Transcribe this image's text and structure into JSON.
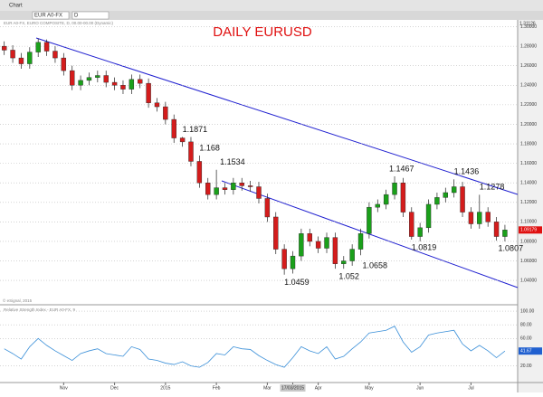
{
  "toolbar": {
    "window": "Chart",
    "symbol": "EUR A0-FX",
    "interval": "D",
    "study": "EUR A0-FX, EURO COMPOSITE, D, 00.00-00.00 (Dynamic)",
    "copyright": "© eSignal, 2015",
    "top_price": "1.31126"
  },
  "chart_data": [
    {
      "type": "candlestick",
      "title": "DAILY EURUSD",
      "up_color": "#1aa01a",
      "down_color": "#d41c1c",
      "last_label": "1.09179",
      "grid": true,
      "open": [
        1.28,
        1.276,
        1.268,
        1.262,
        1.274,
        1.284,
        1.275,
        1.268,
        1.255,
        1.24,
        1.245,
        1.248,
        1.25,
        1.243,
        1.24,
        1.236,
        1.246,
        1.242,
        1.222,
        1.218,
        1.205,
        1.186,
        1.182,
        1.162,
        1.14,
        1.128,
        1.135,
        1.133,
        1.14,
        1.137,
        1.136,
        1.124,
        1.105,
        1.072,
        1.052,
        1.065,
        1.088,
        1.08,
        1.073,
        1.084,
        1.057,
        1.06,
        1.072,
        1.088,
        1.115,
        1.118,
        1.128,
        1.14,
        1.11,
        1.085,
        1.094,
        1.118,
        1.125,
        1.13,
        1.136,
        1.11,
        1.098,
        1.11,
        1.1,
        1.085
      ],
      "high": [
        1.285,
        1.281,
        1.273,
        1.279,
        1.288,
        1.287,
        1.28,
        1.273,
        1.26,
        1.25,
        1.253,
        1.255,
        1.255,
        1.248,
        1.245,
        1.251,
        1.251,
        1.247,
        1.227,
        1.223,
        1.21,
        1.1871,
        1.187,
        1.168,
        1.145,
        1.1534,
        1.14,
        1.145,
        1.145,
        1.142,
        1.141,
        1.129,
        1.11,
        1.077,
        1.07,
        1.093,
        1.093,
        1.085,
        1.089,
        1.089,
        1.065,
        1.077,
        1.093,
        1.12,
        1.123,
        1.133,
        1.1467,
        1.145,
        1.115,
        1.099,
        1.123,
        1.13,
        1.135,
        1.1436,
        1.141,
        1.115,
        1.1278,
        1.115,
        1.105,
        1.097
      ],
      "low": [
        1.271,
        1.263,
        1.257,
        1.257,
        1.269,
        1.27,
        1.263,
        1.25,
        1.235,
        1.235,
        1.24,
        1.243,
        1.238,
        1.235,
        1.231,
        1.231,
        1.237,
        1.217,
        1.213,
        1.2,
        1.181,
        1.177,
        1.157,
        1.135,
        1.123,
        1.123,
        1.128,
        1.128,
        1.132,
        1.131,
        1.119,
        1.1,
        1.067,
        1.0459,
        1.047,
        1.06,
        1.075,
        1.068,
        1.068,
        1.052,
        1.052,
        1.055,
        1.0658,
        1.083,
        1.11,
        1.113,
        1.123,
        1.105,
        1.0819,
        1.08,
        1.089,
        1.113,
        1.12,
        1.125,
        1.105,
        1.093,
        1.093,
        1.095,
        1.0807,
        1.08
      ],
      "close": [
        1.276,
        1.268,
        1.262,
        1.274,
        1.284,
        1.275,
        1.268,
        1.255,
        1.24,
        1.245,
        1.248,
        1.25,
        1.243,
        1.24,
        1.236,
        1.246,
        1.242,
        1.222,
        1.218,
        1.205,
        1.186,
        1.182,
        1.162,
        1.14,
        1.128,
        1.135,
        1.133,
        1.14,
        1.137,
        1.136,
        1.124,
        1.105,
        1.072,
        1.052,
        1.065,
        1.088,
        1.08,
        1.073,
        1.084,
        1.057,
        1.06,
        1.072,
        1.088,
        1.115,
        1.118,
        1.128,
        1.14,
        1.11,
        1.085,
        1.094,
        1.118,
        1.125,
        1.13,
        1.136,
        1.11,
        1.098,
        1.11,
        1.1,
        1.085,
        1.0917
      ],
      "xlim": [
        -0.5,
        60.5
      ],
      "xticks": [
        {
          "value": 7,
          "label": "Nov"
        },
        {
          "value": 13,
          "label": "Dec"
        },
        {
          "value": 19,
          "label": "2015"
        },
        {
          "value": 25,
          "label": "Feb"
        },
        {
          "value": 31,
          "label": "Mar"
        },
        {
          "value": 34,
          "label": "17/03/2015"
        },
        {
          "value": 37,
          "label": "Apr"
        },
        {
          "value": 43,
          "label": "May"
        },
        {
          "value": 49,
          "label": "Jun"
        },
        {
          "value": 55,
          "label": "Jul"
        }
      ],
      "ylim": [
        1.016,
        1.307
      ],
      "yticks": [
        {
          "value": 1.3,
          "label": "1.30000"
        },
        {
          "value": 1.28,
          "label": "1.28000"
        },
        {
          "value": 1.26,
          "label": "1.26000"
        },
        {
          "value": 1.24,
          "label": "1.24000"
        },
        {
          "value": 1.22,
          "label": "1.22000"
        },
        {
          "value": 1.2,
          "label": "1.20000"
        },
        {
          "value": 1.18,
          "label": "1.18000"
        },
        {
          "value": 1.16,
          "label": "1.16000"
        },
        {
          "value": 1.14,
          "label": "1.14000"
        },
        {
          "value": 1.12,
          "label": "1.12000"
        },
        {
          "value": 1.1,
          "label": "1.10000"
        },
        {
          "value": 1.08,
          "label": "1.08000"
        },
        {
          "value": 1.06,
          "label": "1.06000"
        },
        {
          "value": 1.04,
          "label": "1.04000"
        }
      ]
    },
    {
      "type": "line",
      "title": "Relative Strength Index - EUR A0-FX, 9",
      "color": "#3a8fd8",
      "last_label": "41.67",
      "grid": true,
      "values": [
        45,
        38,
        30,
        48,
        60,
        50,
        42,
        35,
        28,
        38,
        42,
        45,
        38,
        36,
        34,
        48,
        44,
        30,
        28,
        24,
        22,
        26,
        20,
        18,
        25,
        38,
        36,
        48,
        45,
        44,
        35,
        28,
        22,
        18,
        32,
        48,
        42,
        38,
        48,
        30,
        34,
        45,
        55,
        68,
        70,
        72,
        78,
        55,
        40,
        48,
        65,
        68,
        70,
        72,
        52,
        42,
        50,
        42,
        32,
        41.67
      ],
      "ylim": [
        -3,
        108
      ],
      "yticks": [
        {
          "value": 100,
          "label": "100.00"
        },
        {
          "value": 80,
          "label": "80.00"
        },
        {
          "value": 60,
          "label": "60.00"
        },
        {
          "value": 20,
          "label": "20.00"
        }
      ]
    }
  ]
}
